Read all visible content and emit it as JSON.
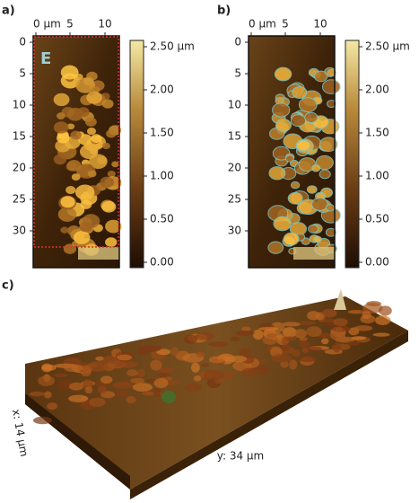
{
  "panels": [
    {
      "label": "a)",
      "inset_label": "E",
      "x_ticks": [
        "0 µm",
        "5",
        "10"
      ],
      "y_ticks": [
        "0",
        "5",
        "10",
        "15",
        "20",
        "25",
        "30"
      ],
      "colorbar_ticks": [
        "2.50 µm",
        "2.00",
        "1.50",
        "1.00",
        "0.50",
        "0.00"
      ]
    },
    {
      "label": "b)",
      "x_ticks": [
        "0 µm",
        "5",
        "10"
      ],
      "y_ticks": [
        "0",
        "5",
        "10",
        "15",
        "20",
        "25",
        "30"
      ],
      "colorbar_ticks": [
        "2.50 µm",
        "2.00",
        "1.50",
        "1.00",
        "0.50",
        "0.00"
      ]
    },
    {
      "label": "c)",
      "x_axis_label": "x: 14 µm",
      "y_axis_label": "y: 34 µm"
    }
  ]
}
